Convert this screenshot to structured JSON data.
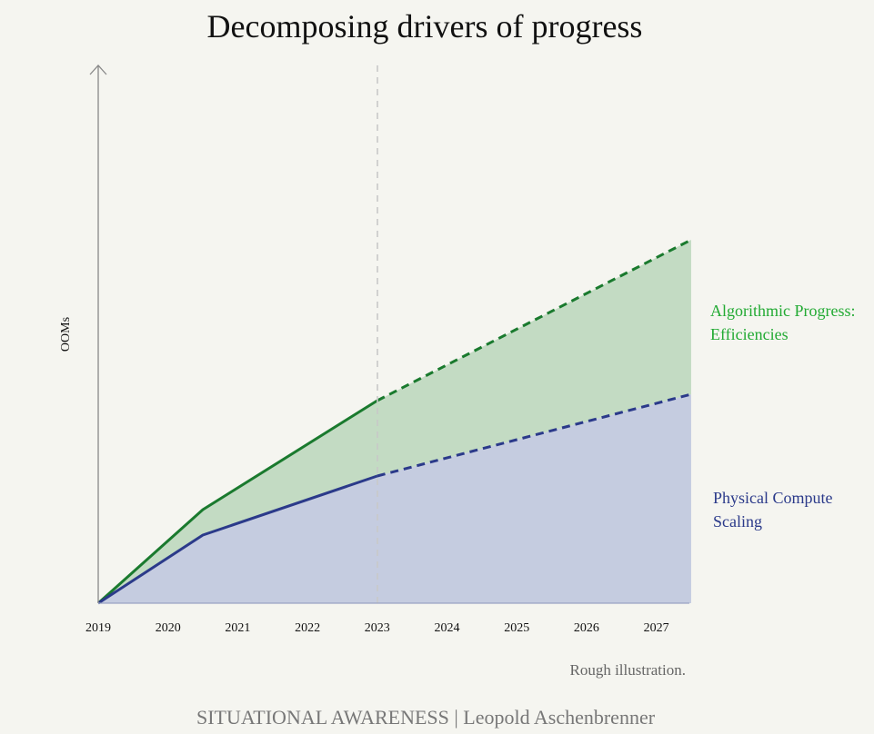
{
  "chart_data": {
    "type": "area",
    "title": "Decomposing drivers of progress",
    "ylabel": "OOMs",
    "xlabel": "",
    "x_ticks": [
      "2019",
      "2020",
      "2021",
      "2022",
      "2023",
      "2024",
      "2025",
      "2026",
      "2027"
    ],
    "xlim": [
      2019,
      2027.5
    ],
    "projection_start": 2023,
    "series": [
      {
        "name": "Physical Compute Scaling",
        "label_lines": [
          "Physical Compute",
          "Scaling"
        ],
        "color": "#2b3a8a",
        "fill": "#c5cce0",
        "x": [
          2019,
          2020.5,
          2023,
          2027.5
        ],
        "y": [
          0,
          0.75,
          1.4,
          2.3
        ]
      },
      {
        "name": "Algorithmic Progress: Efficiencies",
        "label_lines": [
          "Algorithmic Progress:",
          "Efficiencies"
        ],
        "color": "#1a7a2e",
        "fill": "#c3dbc3",
        "label_color": "#22aa33",
        "x": [
          2019,
          2020.5,
          2023,
          2027.5
        ],
        "y": [
          0,
          1.03,
          2.23,
          4.0
        ]
      }
    ],
    "note": "Rough illustration.",
    "grid": false,
    "legend": "inline-right"
  },
  "footer": {
    "credit": "SITUATIONAL AWARENESS | Leopold Aschenbrenner"
  }
}
